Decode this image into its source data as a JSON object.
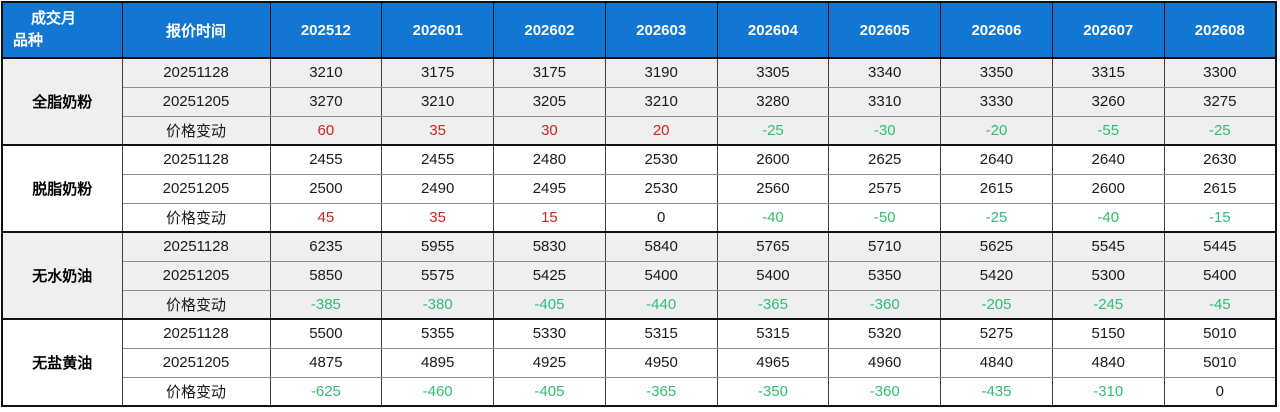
{
  "chart_data": {
    "type": "table",
    "corner_header_line1": "成交月",
    "corner_header_line2": "品种",
    "quote_time_header": "报价时间",
    "change_row_label": "价格变动",
    "columns": [
      "202512",
      "202601",
      "202602",
      "202603",
      "202604",
      "202605",
      "202606",
      "202607",
      "202608"
    ],
    "row_groups": [
      {
        "product": "全脂奶粉",
        "rows": [
          {
            "label": "20251128",
            "values": [
              3210,
              3175,
              3175,
              3190,
              3305,
              3340,
              3350,
              3315,
              3300
            ]
          },
          {
            "label": "20251205",
            "values": [
              3270,
              3210,
              3205,
              3210,
              3280,
              3310,
              3330,
              3260,
              3275
            ]
          },
          {
            "label": "价格变动",
            "values": [
              60,
              35,
              30,
              20,
              -25,
              -30,
              -20,
              -55,
              -25
            ]
          }
        ]
      },
      {
        "product": "脱脂奶粉",
        "rows": [
          {
            "label": "20251128",
            "values": [
              2455,
              2455,
              2480,
              2530,
              2600,
              2625,
              2640,
              2640,
              2630
            ]
          },
          {
            "label": "20251205",
            "values": [
              2500,
              2490,
              2495,
              2530,
              2560,
              2575,
              2615,
              2600,
              2615
            ]
          },
          {
            "label": "价格变动",
            "values": [
              45,
              35,
              15,
              0,
              -40,
              -50,
              -25,
              -40,
              -15
            ]
          }
        ]
      },
      {
        "product": "无水奶油",
        "rows": [
          {
            "label": "20251128",
            "values": [
              6235,
              5955,
              5830,
              5840,
              5765,
              5710,
              5625,
              5545,
              5445
            ]
          },
          {
            "label": "20251205",
            "values": [
              5850,
              5575,
              5425,
              5400,
              5400,
              5350,
              5420,
              5300,
              5400
            ]
          },
          {
            "label": "价格变动",
            "values": [
              -385,
              -380,
              -405,
              -440,
              -365,
              -360,
              -205,
              -245,
              -45
            ]
          }
        ]
      },
      {
        "product": "无盐黄油",
        "rows": [
          {
            "label": "20251128",
            "values": [
              5500,
              5355,
              5330,
              5315,
              5315,
              5320,
              5275,
              5150,
              5010
            ]
          },
          {
            "label": "20251205",
            "values": [
              4875,
              4895,
              4925,
              4950,
              4965,
              4960,
              4840,
              4840,
              5010
            ]
          },
          {
            "label": "价格变动",
            "values": [
              -625,
              -460,
              -405,
              -365,
              -350,
              -360,
              -435,
              -310,
              0
            ]
          }
        ]
      }
    ],
    "layout": {
      "shaded_group_indexes": [
        0,
        2
      ],
      "positive_change_color": "#cc2420",
      "negative_change_color": "#2fbe75",
      "header_bg_color": "#1277d2"
    }
  }
}
